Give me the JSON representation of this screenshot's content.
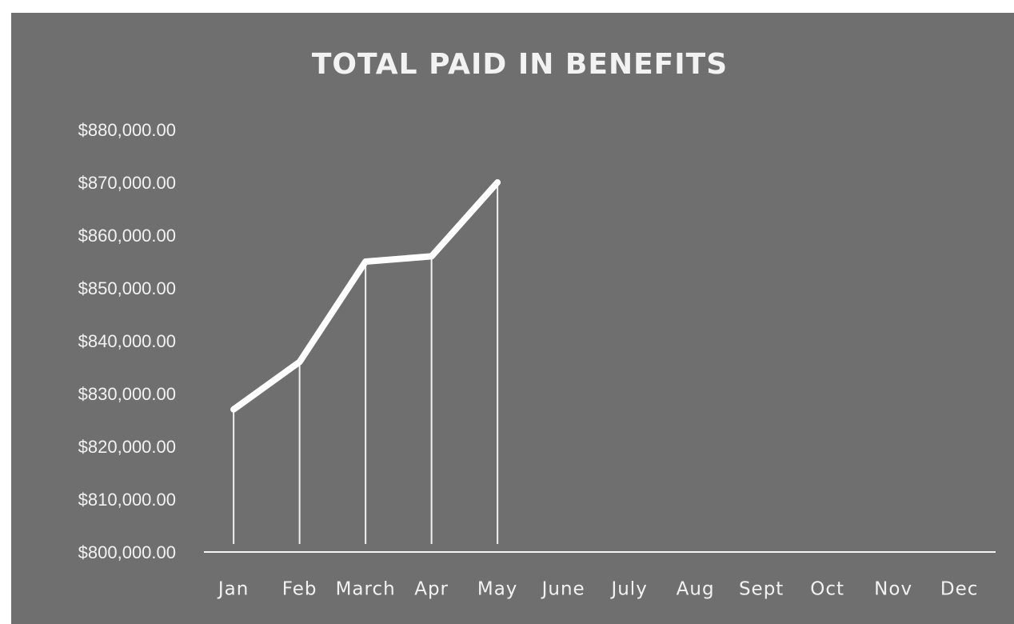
{
  "chart_data": {
    "type": "line",
    "title": "TOTAL PAID IN BENEFITS",
    "categories": [
      "Jan",
      "Feb",
      "March",
      "Apr",
      "May",
      "June",
      "July",
      "Aug",
      "Sept",
      "Oct",
      "Nov",
      "Dec"
    ],
    "values": [
      827000,
      836000,
      855000,
      856000,
      870000,
      null,
      null,
      null,
      null,
      null,
      null,
      null
    ],
    "color": "#ffffff",
    "ylim": [
      800000,
      880000
    ],
    "yticks": [
      {
        "value": 800000,
        "label": "$800,000.00"
      },
      {
        "value": 810000,
        "label": "$810,000.00"
      },
      {
        "value": 820000,
        "label": "$820,000.00"
      },
      {
        "value": 830000,
        "label": "$830,000.00"
      },
      {
        "value": 840000,
        "label": "$840,000.00"
      },
      {
        "value": 850000,
        "label": "$850,000.00"
      },
      {
        "value": 860000,
        "label": "$860,000.00"
      },
      {
        "value": 870000,
        "label": "$870,000.00"
      },
      {
        "value": 880000,
        "label": "$880,000.00"
      }
    ],
    "drop_lines": true
  }
}
